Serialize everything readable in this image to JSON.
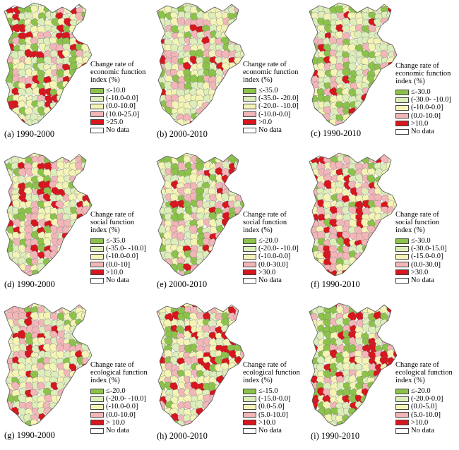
{
  "colors": {
    "green": "#8cc24a",
    "light_green": "#ddeebb",
    "light_yellow": "#f4f4b6",
    "pink": "#f2b6b8",
    "red": "#d7161e",
    "no_data": "#ffffff"
  },
  "panels": [
    {
      "caption": "(a) 1990-2000",
      "legend": {
        "title": [
          "Change rate of",
          "economic function",
          "index (%)"
        ],
        "items": [
          {
            "label": "≤-10.0",
            "color": "green"
          },
          {
            "label": "(-10.0-0.0]",
            "color": "light_green"
          },
          {
            "label": "(0.0-10.0]",
            "color": "light_yellow"
          },
          {
            "label": "(10.0-25.0]",
            "color": "pink"
          },
          {
            "label": ">25.0",
            "color": "red"
          },
          {
            "label": "No data",
            "color": "no_data"
          }
        ]
      }
    },
    {
      "caption": "(b) 2000-2010",
      "legend": {
        "title": [
          "Change rate of",
          "economic function",
          "index (%)"
        ],
        "items": [
          {
            "label": "≤-35.0",
            "color": "green"
          },
          {
            "label": "(-35.0- -20.0]",
            "color": "light_green"
          },
          {
            "label": "(-20.0- -10.0]",
            "color": "light_yellow"
          },
          {
            "label": "(-10.0-0.0]",
            "color": "pink"
          },
          {
            "label": ">0.0",
            "color": "red"
          },
          {
            "label": "No data",
            "color": "no_data"
          }
        ]
      }
    },
    {
      "caption": "(c) 1990-2010",
      "legend": {
        "title": [
          "Change rate of",
          "economic function",
          "index (%)"
        ],
        "items": [
          {
            "label": "≤-30.0",
            "color": "green"
          },
          {
            "label": "(-30.0- -10.0]",
            "color": "light_green"
          },
          {
            "label": "(-10.0-0.0]",
            "color": "light_yellow"
          },
          {
            "label": "(0.0-10.0]",
            "color": "pink"
          },
          {
            "label": ">10.0",
            "color": "red"
          },
          {
            "label": "No data",
            "color": "no_data"
          }
        ]
      }
    },
    {
      "caption": "(d) 1990-2000",
      "legend": {
        "title": [
          "Change rate of",
          "social function",
          "index (%)"
        ],
        "items": [
          {
            "label": "≤-35.0",
            "color": "green"
          },
          {
            "label": "(-35.0- -10.0]",
            "color": "light_green"
          },
          {
            "label": "(-10.0-0.0]",
            "color": "light_yellow"
          },
          {
            "label": "(0.0-10]",
            "color": "pink"
          },
          {
            "label": ">10.0",
            "color": "red"
          },
          {
            "label": "No data",
            "color": "no_data"
          }
        ]
      }
    },
    {
      "caption": "(e) 2000-2010",
      "legend": {
        "title": [
          "Change rate of",
          "social function",
          "index (%)"
        ],
        "items": [
          {
            "label": "≤-20.0",
            "color": "green"
          },
          {
            "label": "(-20.0- -10.0]",
            "color": "light_green"
          },
          {
            "label": "(-10.0-0.0]",
            "color": "light_yellow"
          },
          {
            "label": "(0.0-30.0]",
            "color": "pink"
          },
          {
            "label": ">30.0",
            "color": "red"
          },
          {
            "label": "No data",
            "color": "no_data"
          }
        ]
      }
    },
    {
      "caption": "(f) 1990-2010",
      "legend": {
        "title": [
          "Change rate of",
          "social function",
          "index (%)"
        ],
        "items": [
          {
            "label": "≤-30.0",
            "color": "green"
          },
          {
            "label": "(-30.0-15.0]",
            "color": "light_green"
          },
          {
            "label": "(-15.0-0.0]",
            "color": "light_yellow"
          },
          {
            "label": "(0.0-30.0]",
            "color": "pink"
          },
          {
            "label": ">30.0",
            "color": "red"
          },
          {
            "label": "No data",
            "color": "no_data"
          }
        ]
      }
    },
    {
      "caption": "(g) 1990-2000",
      "legend": {
        "title": [
          "Change rate of",
          "ecological function",
          "index (%)"
        ],
        "items": [
          {
            "label": "≤-20.0",
            "color": "green"
          },
          {
            "label": "(-20.0- -10.0]",
            "color": "light_green"
          },
          {
            "label": "(-10.0-0.0]",
            "color": "light_yellow"
          },
          {
            "label": "(0.0-10.0]",
            "color": "pink"
          },
          {
            "label": "> 10.0",
            "color": "red"
          },
          {
            "label": "No data",
            "color": "no_data"
          }
        ]
      }
    },
    {
      "caption": "(h) 2000-2010",
      "legend": {
        "title": [
          "Change rate of",
          "ecological function",
          "index (%)"
        ],
        "items": [
          {
            "label": "≤-15.0",
            "color": "green"
          },
          {
            "label": "(-15.0-0.0]",
            "color": "light_green"
          },
          {
            "label": "(0.0-5.0]",
            "color": "light_yellow"
          },
          {
            "label": "(5.0-10.0]",
            "color": "pink"
          },
          {
            "label": ">10.0",
            "color": "red"
          },
          {
            "label": "No data",
            "color": "no_data"
          }
        ]
      }
    },
    {
      "caption": "(i) 1990-2010",
      "legend": {
        "title": [
          "Change rate of",
          "ecological function",
          "index (%)"
        ],
        "items": [
          {
            "label": "≤-20.0",
            "color": "green"
          },
          {
            "label": "(-20.0-0.0]",
            "color": "light_green"
          },
          {
            "label": "(0.0-5.0]",
            "color": "light_yellow"
          },
          {
            "label": "(5.0-10.0]",
            "color": "pink"
          },
          {
            "label": ">10.0",
            "color": "red"
          },
          {
            "label": "No data",
            "color": "no_data"
          }
        ]
      }
    }
  ]
}
